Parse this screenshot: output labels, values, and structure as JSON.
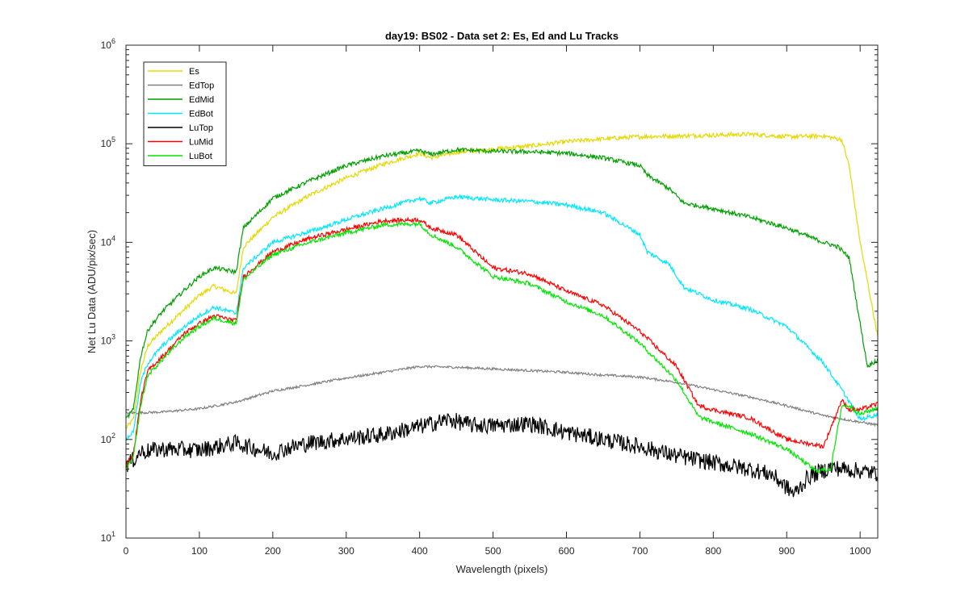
{
  "chart_data": {
    "type": "line",
    "title": "day19: BS02 - Data set 2: Es, Ed and Lu Tracks",
    "xlabel": "Wavelength (pixels)",
    "ylabel": "Net Lu Data (ADU/pix/sec)",
    "xlim": [
      0,
      1024
    ],
    "ylim": [
      10,
      1000000
    ],
    "yscale": "log",
    "grid": false,
    "legend_position": "top-left",
    "x_ticks": [
      0,
      100,
      200,
      300,
      400,
      500,
      600,
      700,
      800,
      900,
      1000
    ],
    "y_ticks": [
      {
        "value": 10,
        "base": "10",
        "exp": "1"
      },
      {
        "value": 100,
        "base": "10",
        "exp": "2"
      },
      {
        "value": 1000,
        "base": "10",
        "exp": "3"
      },
      {
        "value": 10000,
        "base": "10",
        "exp": "4"
      },
      {
        "value": 100000,
        "base": "10",
        "exp": "5"
      },
      {
        "value": 1000000,
        "base": "10",
        "exp": "6"
      }
    ],
    "series": [
      {
        "name": "Es",
        "color": "#e6d800",
        "x": [
          0,
          10,
          20,
          30,
          50,
          80,
          100,
          120,
          150,
          160,
          200,
          250,
          300,
          350,
          400,
          415,
          450,
          500,
          550,
          600,
          650,
          700,
          750,
          800,
          850,
          900,
          950,
          975,
          985,
          1000,
          1024
        ],
        "y": [
          130,
          160,
          500,
          900,
          1300,
          2100,
          2900,
          3600,
          3000,
          9000,
          18000,
          30000,
          45000,
          62000,
          80000,
          72000,
          82000,
          88000,
          95000,
          105000,
          112000,
          118000,
          120000,
          122000,
          125000,
          118000,
          120000,
          110000,
          60000,
          10000,
          1100
        ]
      },
      {
        "name": "EdTop",
        "color": "#808080",
        "x": [
          0,
          50,
          100,
          150,
          200,
          250,
          300,
          350,
          400,
          450,
          500,
          550,
          600,
          650,
          700,
          750,
          800,
          850,
          900,
          950,
          1000,
          1024
        ],
        "y": [
          185,
          190,
          205,
          240,
          310,
          360,
          420,
          480,
          550,
          540,
          520,
          500,
          480,
          450,
          430,
          380,
          320,
          270,
          220,
          175,
          150,
          140
        ]
      },
      {
        "name": "EdMid",
        "color": "#00a000",
        "x": [
          0,
          10,
          20,
          30,
          50,
          80,
          100,
          120,
          150,
          160,
          200,
          250,
          300,
          350,
          400,
          415,
          450,
          500,
          550,
          600,
          650,
          700,
          710,
          740,
          760,
          800,
          850,
          900,
          950,
          970,
          985,
          1000,
          1010,
          1024
        ],
        "y": [
          160,
          200,
          700,
          1300,
          2000,
          3300,
          4500,
          5500,
          5000,
          14000,
          28000,
          42000,
          60000,
          75000,
          85000,
          78000,
          87000,
          84000,
          83000,
          80000,
          72000,
          60000,
          48000,
          35000,
          25000,
          22000,
          18000,
          14000,
          10000,
          9000,
          7000,
          1500,
          550,
          650
        ]
      },
      {
        "name": "EdBot",
        "color": "#00e8ff",
        "x": [
          0,
          10,
          20,
          30,
          50,
          80,
          100,
          120,
          150,
          160,
          200,
          260,
          300,
          350,
          400,
          415,
          450,
          500,
          550,
          600,
          650,
          700,
          710,
          740,
          760,
          800,
          850,
          900,
          950,
          980,
          1000,
          1024
        ],
        "y": [
          100,
          120,
          380,
          600,
          900,
          1400,
          1800,
          2200,
          1900,
          5500,
          10000,
          13500,
          17000,
          22000,
          28000,
          25000,
          29000,
          27000,
          26000,
          24000,
          20000,
          12000,
          8000,
          6000,
          3500,
          2600,
          2100,
          1400,
          600,
          280,
          160,
          180
        ]
      },
      {
        "name": "LuTop",
        "color": "#000000",
        "x": [
          0,
          10,
          20,
          50,
          100,
          150,
          200,
          220,
          250,
          300,
          350,
          400,
          440,
          470,
          500,
          550,
          600,
          650,
          700,
          750,
          800,
          850,
          880,
          910,
          930,
          960,
          1000,
          1024
        ],
        "y": [
          55,
          62,
          75,
          80,
          78,
          92,
          72,
          82,
          92,
          102,
          112,
          135,
          160,
          140,
          138,
          145,
          118,
          100,
          85,
          68,
          58,
          50,
          44,
          28,
          42,
          52,
          48,
          45
        ]
      },
      {
        "name": "LuMid",
        "color": "#ff0000",
        "x": [
          0,
          10,
          20,
          30,
          50,
          80,
          100,
          120,
          150,
          160,
          200,
          250,
          300,
          350,
          400,
          415,
          450,
          500,
          550,
          600,
          650,
          700,
          750,
          780,
          800,
          850,
          900,
          950,
          975,
          985,
          1000,
          1024
        ],
        "y": [
          55,
          70,
          250,
          500,
          700,
          1200,
          1500,
          1800,
          1600,
          4500,
          8000,
          11000,
          13500,
          16500,
          17000,
          14000,
          12000,
          5500,
          4800,
          3200,
          2300,
          1250,
          550,
          220,
          200,
          165,
          100,
          85,
          250,
          200,
          200,
          230
        ]
      },
      {
        "name": "LuBot",
        "color": "#00e600",
        "x": [
          0,
          10,
          20,
          30,
          50,
          80,
          100,
          120,
          150,
          160,
          200,
          250,
          300,
          350,
          400,
          415,
          450,
          500,
          550,
          600,
          650,
          700,
          750,
          780,
          800,
          850,
          900,
          940,
          960,
          975,
          985,
          1000,
          1024
        ],
        "y": [
          50,
          65,
          220,
          450,
          650,
          1100,
          1400,
          1700,
          1500,
          4200,
          7500,
          10000,
          12500,
          15000,
          15500,
          12000,
          9000,
          4500,
          3800,
          2500,
          1800,
          950,
          400,
          170,
          150,
          115,
          80,
          48,
          50,
          220,
          220,
          180,
          210
        ]
      }
    ]
  }
}
